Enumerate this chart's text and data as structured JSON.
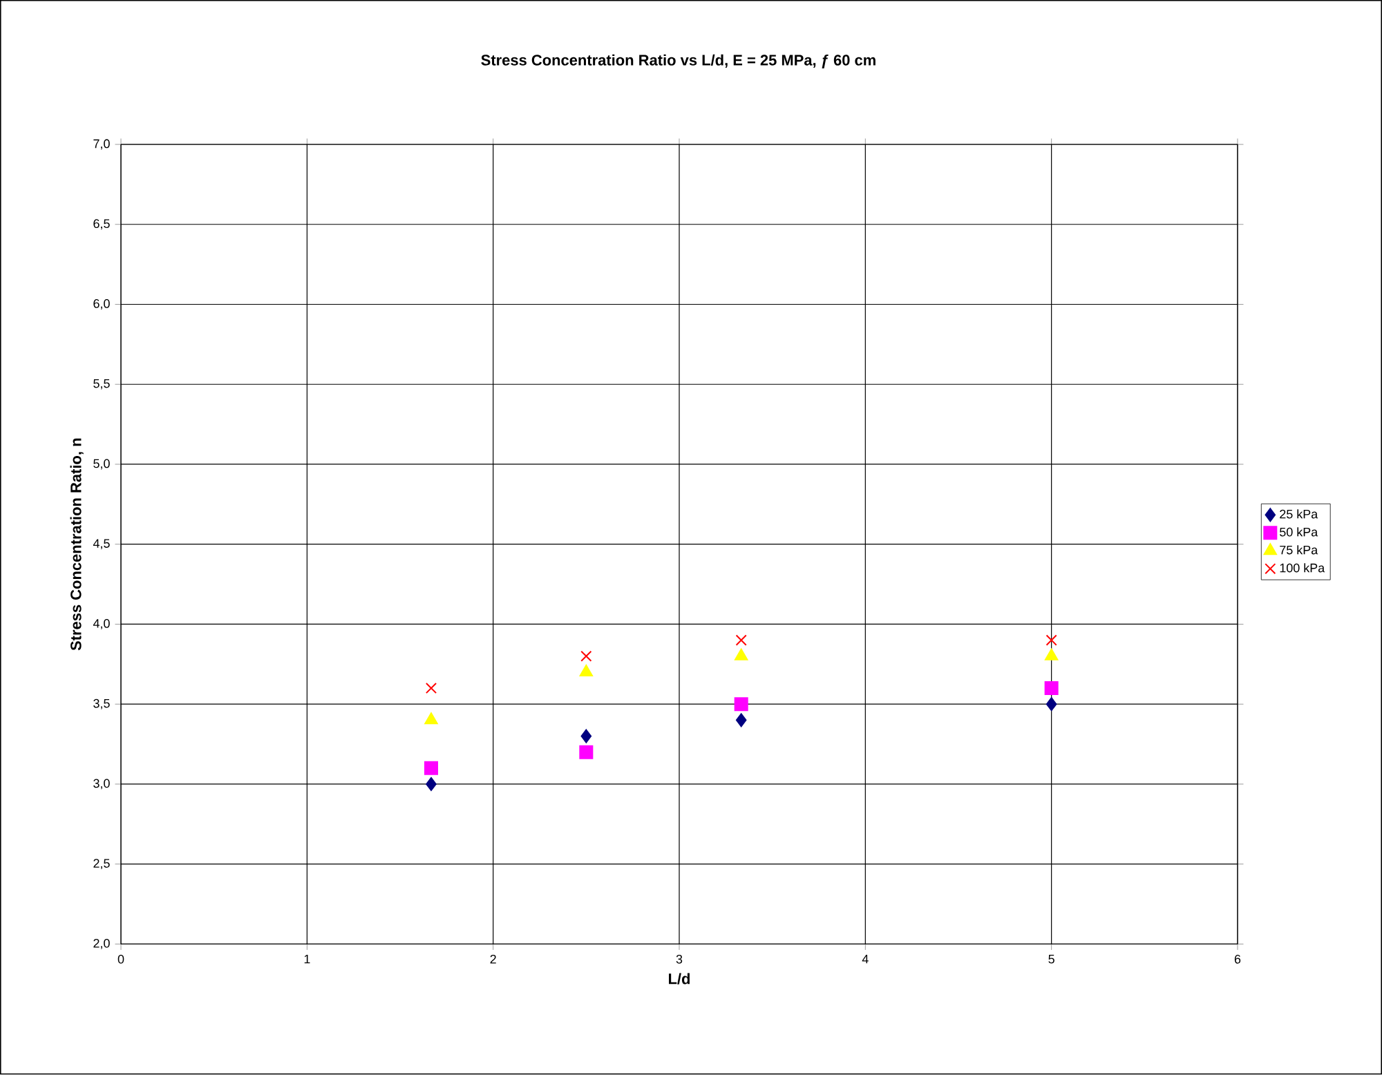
{
  "chart_data": {
    "type": "scatter",
    "title": "Stress Concentration Ratio vs L/d, E = 25 MPa, ƒ 60 cm",
    "xlabel": "L/d",
    "ylabel": "Stress Concentration Ratio, n",
    "x": [
      1.667,
      2.5,
      3.333,
      5
    ],
    "series": [
      {
        "name": "25 kPa",
        "color": "#000080",
        "marker": "diamond",
        "values": [
          3.0,
          3.3,
          3.4,
          3.5
        ]
      },
      {
        "name": "50 kPa",
        "color": "#ff00ff",
        "marker": "square",
        "values": [
          3.1,
          3.2,
          3.5,
          3.6
        ]
      },
      {
        "name": "75 kPa",
        "color": "#ffff00",
        "marker": "triangle",
        "values": [
          3.4,
          3.7,
          3.8,
          3.8
        ]
      },
      {
        "name": "100 kPa",
        "color": "#ff0000",
        "marker": "cross",
        "values": [
          3.6,
          3.8,
          3.9,
          3.9
        ]
      }
    ],
    "xlim": [
      0,
      6
    ],
    "xticks": [
      0,
      1,
      2,
      3,
      4,
      5,
      6
    ],
    "ylim": [
      2,
      7
    ],
    "yticks": [
      {
        "value": 2,
        "label": "2,0"
      },
      {
        "value": 2.5,
        "label": "2,5"
      },
      {
        "value": 3,
        "label": "3,0"
      },
      {
        "value": 3.5,
        "label": "3,5"
      },
      {
        "value": 4,
        "label": "4,0"
      },
      {
        "value": 4.5,
        "label": "4,5"
      },
      {
        "value": 5,
        "label": "5,0"
      },
      {
        "value": 5.5,
        "label": "5,5"
      },
      {
        "value": 6,
        "label": "6,0"
      },
      {
        "value": 6.5,
        "label": "6,5"
      },
      {
        "value": 7,
        "label": "7,0"
      }
    ],
    "grid": true,
    "legend": "right"
  }
}
